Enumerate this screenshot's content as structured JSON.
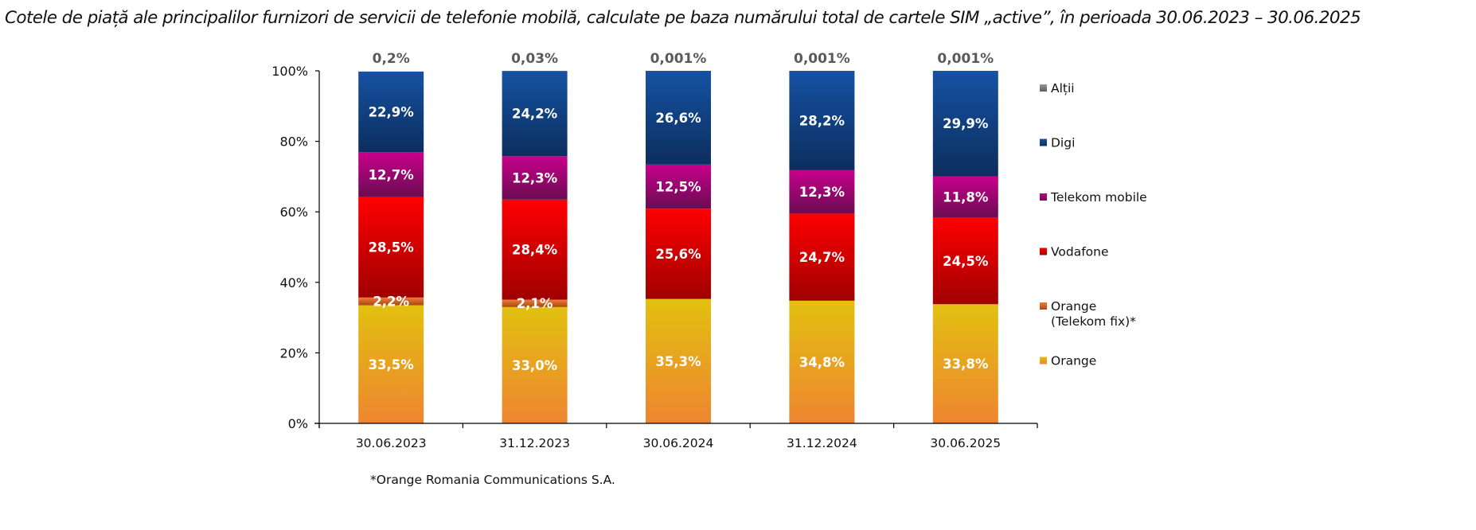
{
  "title": "Cotele de piață ale principalilor furnizori de servicii de telefonie mobilă, calculate pe baza numărului total de cartele SIM „active”, în perioada 30.06.2023 – 30.06.2025",
  "footnote": "*Orange Romania Communications S.A.",
  "chart_data": {
    "type": "bar",
    "stacked": true,
    "title": "Cotele de piață ale principalilor furnizori de servicii de telefonie mobilă, calculate pe baza numărului total de cartele SIM „active”, în perioada 30.06.2023 – 30.06.2025",
    "xlabel": "",
    "ylabel": "",
    "ylim": [
      0,
      100
    ],
    "y_ticks": [
      "0%",
      "20%",
      "40%",
      "60%",
      "80%",
      "100%"
    ],
    "categories": [
      "30.06.2023",
      "31.12.2023",
      "30.06.2024",
      "31.12.2024",
      "30.06.2025"
    ],
    "grid": false,
    "legend_position": "right",
    "series": [
      {
        "name": "Orange",
        "color_top": "#e2c010",
        "color_bottom": "#ee8530",
        "values": [
          33.5,
          33.0,
          35.3,
          34.8,
          33.8
        ],
        "labels": [
          "33,5%",
          "33,0%",
          "35,3%",
          "34,8%",
          "33,8%"
        ]
      },
      {
        "name": "Orange\n(Telekom fix)*",
        "legend_lines": [
          "Orange",
          "(Telekom fix)*"
        ],
        "color_top": "#f07a3a",
        "color_bottom": "#a84a10",
        "values": [
          2.2,
          2.1,
          0,
          0,
          0
        ],
        "labels": [
          "2,2%",
          "2,1%",
          "",
          "",
          ""
        ]
      },
      {
        "name": "Vodafone",
        "color_top": "#ff0000",
        "color_bottom": "#a00000",
        "values": [
          28.5,
          28.4,
          25.6,
          24.7,
          24.5
        ],
        "labels": [
          "28,5%",
          "28,4%",
          "25,6%",
          "24,7%",
          "24,5%"
        ]
      },
      {
        "name": "Telekom mobile",
        "color_top": "#c8008c",
        "color_bottom": "#6a0c52",
        "values": [
          12.7,
          12.3,
          12.5,
          12.3,
          11.8
        ],
        "labels": [
          "12,7%",
          "12,3%",
          "12,5%",
          "12,3%",
          "11,8%"
        ]
      },
      {
        "name": "Digi",
        "color_top": "#1552a2",
        "color_bottom": "#0c2e5e",
        "values": [
          22.9,
          24.2,
          26.6,
          28.2,
          29.9
        ],
        "labels": [
          "22,9%",
          "24,2%",
          "26,6%",
          "28,2%",
          "29,9%"
        ]
      },
      {
        "name": "Alții",
        "color_top": "#9a9a9a",
        "color_bottom": "#5a5a5a",
        "values": [
          0.2,
          0.03,
          0.001,
          0.001,
          0.001
        ],
        "labels": [
          "0,2%",
          "0,03%",
          "0,001%",
          "0,001%",
          "0,001%"
        ]
      }
    ],
    "legend_order": [
      "Alții",
      "Digi",
      "Telekom mobile",
      "Vodafone",
      "Orange (Telekom fix)*",
      "Orange"
    ]
  }
}
